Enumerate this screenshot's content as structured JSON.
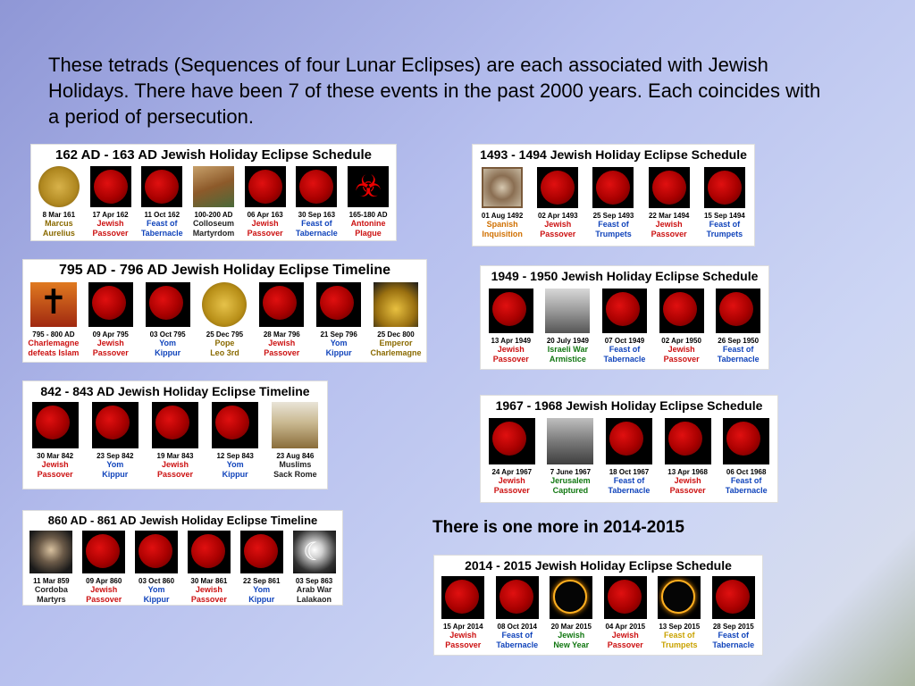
{
  "intro": "These tetrads (Sequences of four Lunar Eclipses) are each associated with Jewish Holidays. There have been 7 of these events in the past 2000 years. Each coincides with a period of persecution.",
  "one_more": "There is one more in 2014-2015",
  "panels": [
    {
      "title": "162 AD - 163 AD Jewish Holiday Eclipse Schedule",
      "items": [
        {
          "date": "8 Mar 161",
          "l1": "Marcus",
          "l2": "Aurelius"
        },
        {
          "date": "17 Apr 162",
          "l1": "Jewish",
          "l2": "Passover"
        },
        {
          "date": "11 Oct 162",
          "l1": "Feast of",
          "l2": "Tabernacle"
        },
        {
          "date": "100-200 AD",
          "l1": "Colloseum",
          "l2": "Martyrdom"
        },
        {
          "date": "06 Apr 163",
          "l1": "Jewish",
          "l2": "Passover"
        },
        {
          "date": "30 Sep 163",
          "l1": "Feast of",
          "l2": "Tabernacle"
        },
        {
          "date": "165-180 AD",
          "l1": "Antonine",
          "l2": "Plague"
        }
      ]
    },
    {
      "title": "1493 - 1494 Jewish Holiday Eclipse Schedule",
      "items": [
        {
          "date": "01 Aug 1492",
          "l1": "Spanish",
          "l2": "Inquisition"
        },
        {
          "date": "02 Apr 1493",
          "l1": "Jewish",
          "l2": "Passover"
        },
        {
          "date": "25 Sep 1493",
          "l1": "Feast of",
          "l2": "Trumpets"
        },
        {
          "date": "22 Mar 1494",
          "l1": "Jewish",
          "l2": "Passover"
        },
        {
          "date": "15 Sep 1494",
          "l1": "Feast of",
          "l2": "Trumpets"
        }
      ]
    },
    {
      "title": "795 AD - 796 AD Jewish Holiday Eclipse Timeline",
      "items": [
        {
          "date": "795 - 800 AD",
          "l1": "Charlemagne",
          "l2": "defeats Islam"
        },
        {
          "date": "09 Apr 795",
          "l1": "Jewish",
          "l2": "Passover"
        },
        {
          "date": "03 Oct 795",
          "l1": "Yom",
          "l2": "Kippur"
        },
        {
          "date": "25 Dec 795",
          "l1": "Pope",
          "l2": "Leo 3rd"
        },
        {
          "date": "28 Mar 796",
          "l1": "Jewish",
          "l2": "Passover"
        },
        {
          "date": "21 Sep 796",
          "l1": "Yom",
          "l2": "Kippur"
        },
        {
          "date": "25 Dec 800",
          "l1": "Emperor",
          "l2": "Charlemagne"
        }
      ]
    },
    {
      "title": "1949 - 1950 Jewish Holiday Eclipse Schedule",
      "items": [
        {
          "date": "13 Apr 1949",
          "l1": "Jewish",
          "l2": "Passover"
        },
        {
          "date": "20 July 1949",
          "l1": "Israeli War",
          "l2": "Armistice"
        },
        {
          "date": "07 Oct 1949",
          "l1": "Feast of",
          "l2": "Tabernacle"
        },
        {
          "date": "02 Apr 1950",
          "l1": "Jewish",
          "l2": "Passover"
        },
        {
          "date": "26 Sep 1950",
          "l1": "Feast of",
          "l2": "Tabernacle"
        }
      ]
    },
    {
      "title": "842 - 843 AD Jewish Holiday Eclipse Timeline",
      "items": [
        {
          "date": "30 Mar 842",
          "l1": "Jewish",
          "l2": "Passover"
        },
        {
          "date": "23 Sep 842",
          "l1": "Yom",
          "l2": "Kippur"
        },
        {
          "date": "19 Mar 843",
          "l1": "Jewish",
          "l2": "Passover"
        },
        {
          "date": "12 Sep 843",
          "l1": "Yom",
          "l2": "Kippur"
        },
        {
          "date": "23 Aug 846",
          "l1": "Muslims",
          "l2": "Sack Rome"
        }
      ]
    },
    {
      "title": "1967 - 1968 Jewish Holiday Eclipse Schedule",
      "items": [
        {
          "date": "24 Apr 1967",
          "l1": "Jewish",
          "l2": "Passover"
        },
        {
          "date": "7 June 1967",
          "l1": "Jerusalem",
          "l2": "Captured"
        },
        {
          "date": "18 Oct 1967",
          "l1": "Feast of",
          "l2": "Tabernacle"
        },
        {
          "date": "13 Apr 1968",
          "l1": "Jewish",
          "l2": "Passover"
        },
        {
          "date": "06 Oct 1968",
          "l1": "Feast of",
          "l2": "Tabernacle"
        }
      ]
    },
    {
      "title": "860 AD - 861 AD Jewish Holiday Eclipse Timeline",
      "items": [
        {
          "date": "11 Mar 859",
          "l1": "Cordoba",
          "l2": "Martyrs"
        },
        {
          "date": "09 Apr 860",
          "l1": "Jewish",
          "l2": "Passover"
        },
        {
          "date": "03 Oct 860",
          "l1": "Yom",
          "l2": "Kippur"
        },
        {
          "date": "30 Mar 861",
          "l1": "Jewish",
          "l2": "Passover"
        },
        {
          "date": "22 Sep 861",
          "l1": "Yom",
          "l2": "Kippur"
        },
        {
          "date": "03 Sep 863",
          "l1": "Arab War",
          "l2": "Lalakaon"
        }
      ]
    },
    {
      "title": "2014 - 2015 Jewish Holiday Eclipse Schedule",
      "items": [
        {
          "date": "15 Apr 2014",
          "l1": "Jewish",
          "l2": "Passover"
        },
        {
          "date": "08 Oct 2014",
          "l1": "Feast of",
          "l2": "Tabernacle"
        },
        {
          "date": "20 Mar 2015",
          "l1": "Jewish",
          "l2": "New Year"
        },
        {
          "date": "04 Apr 2015",
          "l1": "Jewish",
          "l2": "Passover"
        },
        {
          "date": "13 Sep 2015",
          "l1": "Feast of",
          "l2": "Trumpets"
        },
        {
          "date": "28 Sep 2015",
          "l1": "Feast of",
          "l2": "Tabernacle"
        }
      ]
    }
  ]
}
